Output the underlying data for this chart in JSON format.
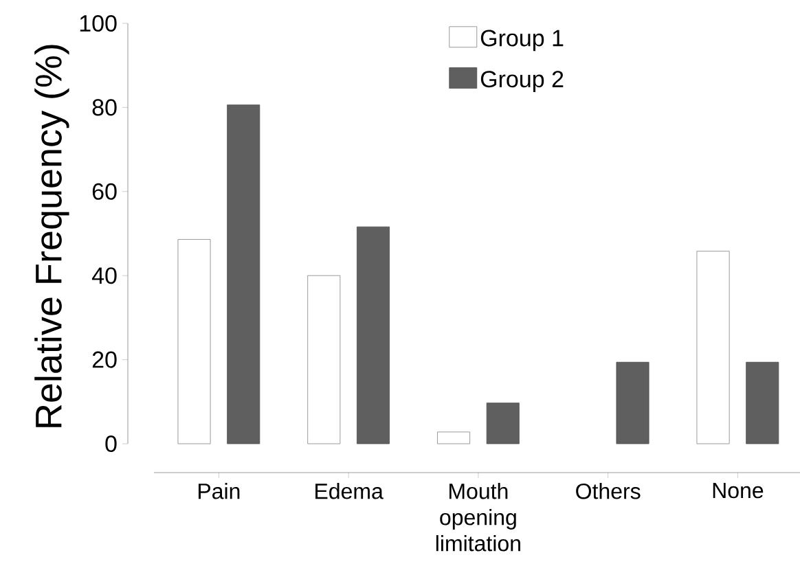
{
  "chart_data": {
    "type": "bar",
    "ylabel": "Relative Frequency (%)",
    "categories": [
      "Pain",
      "Edema",
      "Mouth opening limitation",
      "Others",
      "None"
    ],
    "series": [
      {
        "name": "Group 1",
        "color": "#ffffff",
        "values": [
          48.6,
          40.0,
          2.8,
          null,
          45.8
        ]
      },
      {
        "name": "Group 2",
        "color": "#5f5f5f",
        "values": [
          80.6,
          51.6,
          9.7,
          19.4,
          19.4
        ]
      }
    ],
    "ylim": [
      0,
      100
    ],
    "yticks": [
      0,
      20,
      40,
      60,
      80,
      100
    ],
    "grid": false,
    "legend": "top"
  }
}
